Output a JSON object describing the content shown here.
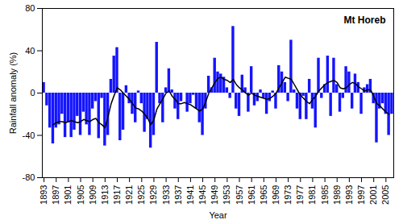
{
  "chart_data": {
    "type": "bar",
    "title": "Mt Horeb",
    "x_label": "Year",
    "y_label": "Rainfall anomaly (%)",
    "x": [
      1893,
      1894,
      1895,
      1896,
      1897,
      1898,
      1899,
      1900,
      1901,
      1902,
      1903,
      1904,
      1905,
      1906,
      1907,
      1908,
      1909,
      1910,
      1911,
      1912,
      1913,
      1914,
      1915,
      1916,
      1917,
      1918,
      1919,
      1920,
      1921,
      1922,
      1923,
      1924,
      1925,
      1926,
      1927,
      1928,
      1929,
      1930,
      1931,
      1932,
      1933,
      1934,
      1935,
      1936,
      1937,
      1938,
      1939,
      1940,
      1941,
      1942,
      1943,
      1944,
      1945,
      1946,
      1947,
      1948,
      1949,
      1950,
      1951,
      1952,
      1953,
      1954,
      1955,
      1956,
      1957,
      1958,
      1959,
      1960,
      1961,
      1962,
      1963,
      1964,
      1965,
      1966,
      1967,
      1968,
      1969,
      1970,
      1971,
      1972,
      1973,
      1974,
      1975,
      1976,
      1977,
      1978,
      1979,
      1980,
      1981,
      1982,
      1983,
      1984,
      1985,
      1986,
      1987,
      1988,
      1989,
      1990,
      1991,
      1992,
      1993,
      1994,
      1995,
      1996,
      1997,
      1998,
      1999,
      2000,
      2001,
      2002,
      2003,
      2004,
      2005,
      2006,
      2007
    ],
    "xticks": [
      1893,
      1897,
      1901,
      1905,
      1909,
      1913,
      1917,
      1921,
      1925,
      1929,
      1933,
      1937,
      1941,
      1945,
      1949,
      1953,
      1957,
      1961,
      1965,
      1969,
      1973,
      1977,
      1981,
      1985,
      1989,
      1993,
      1997,
      2001,
      2005
    ],
    "series": [
      {
        "type": "bar",
        "color": "#1414ff",
        "values": [
          10,
          -12,
          -33,
          -48,
          -33,
          -30,
          -20,
          -42,
          -28,
          -42,
          -35,
          -22,
          -40,
          -18,
          -30,
          -40,
          -15,
          -8,
          -43,
          -5,
          -50,
          -40,
          13,
          35,
          43,
          -45,
          -35,
          7,
          -10,
          -20,
          -28,
          2,
          -10,
          -37,
          -25,
          -52,
          -40,
          48,
          -10,
          -28,
          5,
          23,
          3,
          -15,
          -25,
          -8,
          0,
          -18,
          -10,
          -2,
          -15,
          -28,
          -40,
          -15,
          16,
          5,
          33,
          20,
          18,
          15,
          5,
          -5,
          63,
          -15,
          -22,
          17,
          5,
          -18,
          25,
          -12,
          -8,
          3,
          -5,
          -20,
          -8,
          2,
          -15,
          26,
          20,
          10,
          -8,
          50,
          3,
          -15,
          -25,
          -3,
          -25,
          13,
          -15,
          -33,
          33,
          -5,
          8,
          35,
          -22,
          33,
          8,
          -18,
          -5,
          25,
          20,
          -15,
          18,
          10,
          -20,
          5,
          8,
          13,
          -10,
          -47,
          -15,
          -10,
          -20,
          -40,
          -20
        ]
      },
      {
        "type": "line",
        "color": "#000000",
        "values": [
          null,
          null,
          null,
          -30,
          -28,
          -27,
          -27,
          -28,
          -27,
          -26,
          -27,
          -28,
          -27,
          -25,
          -26,
          -27,
          -25,
          -24,
          -28,
          -30,
          -33,
          -22,
          -10,
          -2,
          5,
          3,
          0,
          -3,
          -6,
          -10,
          -14,
          -15,
          -17,
          -20,
          -24,
          -30,
          -25,
          -15,
          -10,
          -5,
          0,
          2,
          -3,
          -6,
          -10,
          -10,
          -9,
          -10,
          -11,
          -13,
          -15,
          -17,
          -15,
          -8,
          0,
          5,
          10,
          14,
          15,
          13,
          12,
          10,
          13,
          8,
          5,
          3,
          0,
          -2,
          0,
          -2,
          -3,
          -4,
          -5,
          -6,
          -5,
          -3,
          0,
          5,
          10,
          15,
          14,
          13,
          8,
          3,
          -2,
          -5,
          -8,
          -10,
          -6,
          -3,
          2,
          5,
          8,
          10,
          11,
          12,
          10,
          5,
          4,
          5,
          8,
          10,
          9,
          6,
          4,
          2,
          3,
          3,
          -3,
          -10,
          -12,
          -15,
          -18,
          -20,
          null
        ]
      }
    ],
    "ylim": [
      -80,
      80
    ],
    "yticks": [
      -80,
      -40,
      0,
      40,
      80
    ],
    "grid": false
  }
}
